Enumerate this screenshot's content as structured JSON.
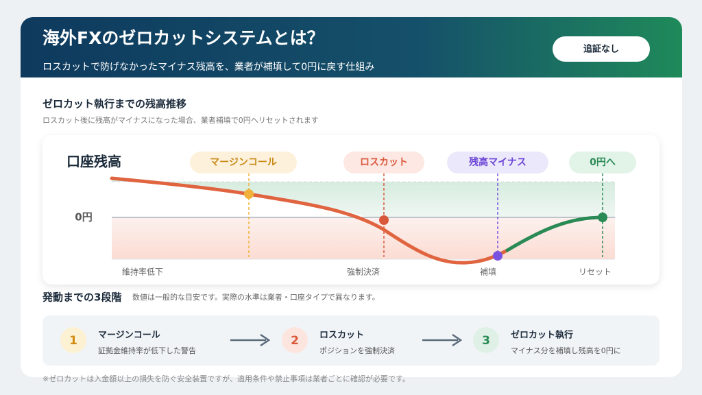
{
  "header": {
    "title": "海外FXのゼロカットシステムとは？",
    "subtitle": "ロスカットで防げなかったマイナス残高を、業者が補填して0円に戻す仕組み",
    "button": "追証なし"
  },
  "chart_section": {
    "title": "ゼロカット執行までの残高推移",
    "subtitle": "ロスカット後に残高がマイナスになった場合、業者補填で0円へリセットされます"
  },
  "chart": {
    "y_label": "口座残高",
    "zero_label": "0円",
    "phases": [
      {
        "label": "マージンコール",
        "x_label": "維持率低下"
      },
      {
        "label": "ロスカット",
        "x_label": "強制決済"
      },
      {
        "label": "残高マイナス",
        "x_label": "補填"
      },
      {
        "label": "0円へ",
        "x_label": "リセット"
      }
    ]
  },
  "steps": {
    "title": "発動までの3段階",
    "note": "数値は一般的な目安です。実際の水準は業者・口座タイプで異なります。",
    "items": [
      {
        "number": "1",
        "title": "マージンコール",
        "desc": "証拠金維持率が低下した警告"
      },
      {
        "number": "2",
        "title": "ロスカット",
        "desc": "ポジションを強制決済"
      },
      {
        "number": "3",
        "title": "ゼロカット執行",
        "desc": "マイナス分を補填し残高を0円に"
      }
    ]
  },
  "footnote": "※ゼロカットは入金額以上の損失を防ぐ安全装置ですが、適用条件や禁止事項は業者ごとに確認が必要です。"
}
